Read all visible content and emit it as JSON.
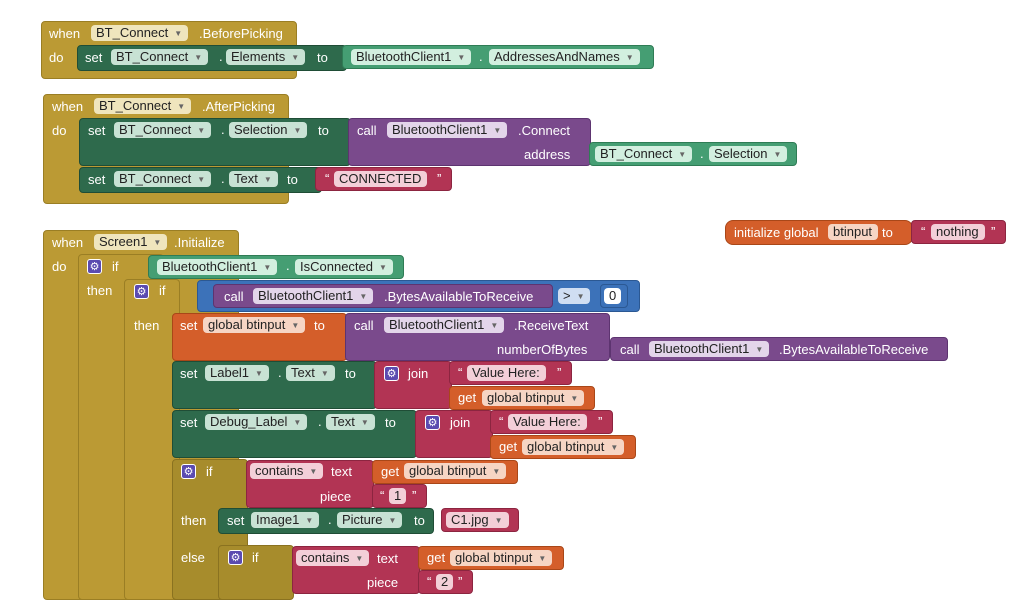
{
  "kw": {
    "when": "when",
    "do": "do",
    "set": "set",
    "to": "to",
    "call": "call",
    "if": "if",
    "then": "then",
    "else": "else",
    "join": "join",
    "get": "get",
    "dot": ".",
    "address": "address",
    "numberOfBytes": "numberOfBytes",
    "text": "text",
    "piece": "piece",
    "contains": "contains",
    "initialize_global": "initialize global",
    "gt": ">",
    "quote_open": "“",
    "quote_close": "”"
  },
  "ev1": {
    "component": "BT_Connect",
    "event": ".BeforePicking",
    "set_comp": "BT_Connect",
    "set_prop": "Elements",
    "val_comp": "BluetoothClient1",
    "val_prop": "AddressesAndNames"
  },
  "ev2": {
    "component": "BT_Connect",
    "event": ".AfterPicking",
    "set_comp": "BT_Connect",
    "set_prop": "Selection",
    "call_comp": "BluetoothClient1",
    "method": ".Connect",
    "addr_comp": "BT_Connect",
    "addr_prop": "Selection",
    "set2_comp": "BT_Connect",
    "set2_prop": "Text",
    "text_value": "CONNECTED"
  },
  "global": {
    "name": "btinput",
    "value": "nothing"
  },
  "ev3": {
    "component": "Screen1",
    "event": ".Initialize",
    "bt_comp": "BluetoothClient1",
    "bt_prop": "IsConnected",
    "call_comp": "BluetoothClient1",
    "bytes_method": ".BytesAvailableToReceive",
    "zero": "0",
    "set_global": "global btinput",
    "recv_comp": "BluetoothClient1",
    "recv_method": ".ReceiveText",
    "nb_comp": "BluetoothClient1",
    "nb_method": ".BytesAvailableToReceive",
    "label_comp": "Label1",
    "label_prop": "Text",
    "value_here": "Value Here:",
    "get_global": "global btinput",
    "debug_comp": "Debug_Label",
    "debug_prop": "Text",
    "piece1": "1",
    "image_comp": "Image1",
    "image_prop": "Picture",
    "image_file": "C1.jpg",
    "piece2": "2"
  }
}
